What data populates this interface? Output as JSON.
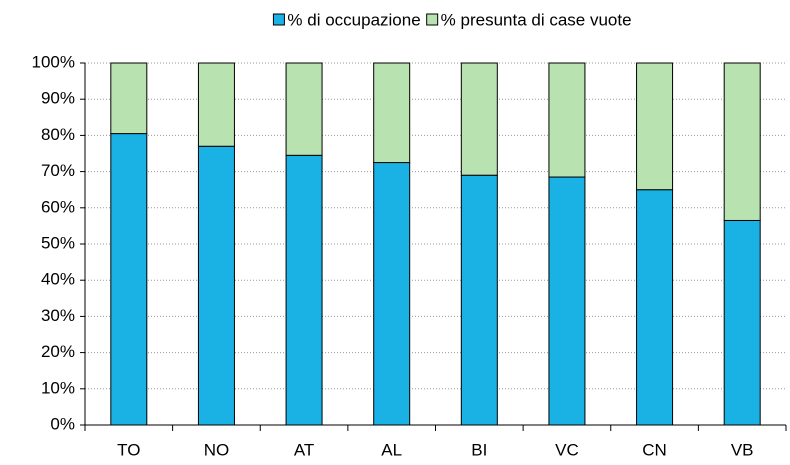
{
  "chart_data": {
    "type": "stacked_bar",
    "categories": [
      "TO",
      "NO",
      "AT",
      "AL",
      "BI",
      "VC",
      "CN",
      "VB"
    ],
    "series": [
      {
        "name": "% di occupazione",
        "color": "#1ab2e4",
        "values": [
          80.5,
          77,
          74.5,
          72.5,
          69,
          68.5,
          65,
          56.5
        ]
      },
      {
        "name": "% presunta di case vuote",
        "color": "#b9e2b1",
        "values": [
          19.5,
          23,
          25.5,
          27.5,
          31,
          31.5,
          35,
          43.5
        ]
      }
    ],
    "ylim": [
      0,
      100
    ],
    "yticks": [
      {
        "value": 0,
        "label": "0%"
      },
      {
        "value": 10,
        "label": "10%"
      },
      {
        "value": 20,
        "label": "20%"
      },
      {
        "value": 30,
        "label": "30%"
      },
      {
        "value": 40,
        "label": "40%"
      },
      {
        "value": 50,
        "label": "50%"
      },
      {
        "value": 60,
        "label": "60%"
      },
      {
        "value": 70,
        "label": "70%"
      },
      {
        "value": 80,
        "label": "80%"
      },
      {
        "value": 90,
        "label": "90%"
      },
      {
        "value": 100,
        "label": "100%"
      }
    ],
    "grid": true,
    "legend": "top"
  }
}
